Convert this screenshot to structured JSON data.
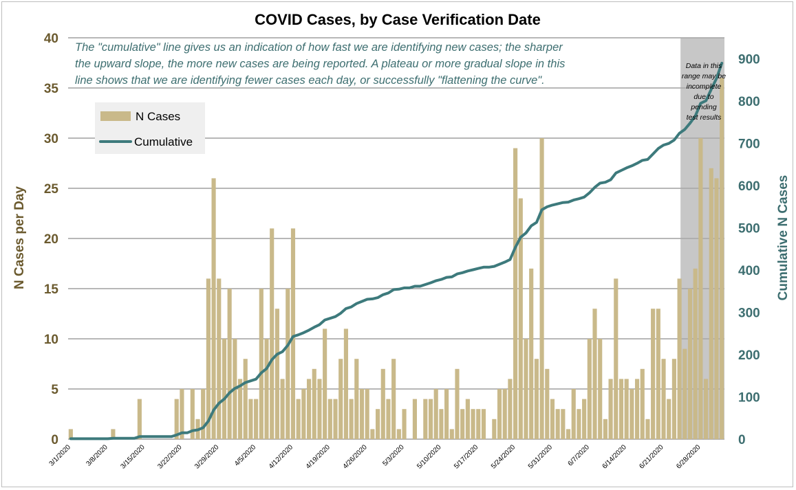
{
  "chart_data": {
    "type": "bar",
    "title": "COVID Cases, by Case Verification Date",
    "ylabel": "N Cases per Day",
    "y2label": "Cumulative N Cases",
    "xlabel": "",
    "ylim": [
      0,
      40
    ],
    "y2lim": [
      0,
      950
    ],
    "yticks": [
      "0",
      "5",
      "10",
      "15",
      "20",
      "25",
      "30",
      "35",
      "40"
    ],
    "y2ticks": [
      "0",
      "100",
      "200",
      "300",
      "400",
      "500",
      "600",
      "700",
      "800",
      "900"
    ],
    "grid": true,
    "legend_position": "top-left",
    "legend": [
      "N Cases",
      "Cumulative"
    ],
    "x_start_date": "3/1/2020",
    "x_tick_labels": [
      "3/1/2020",
      "3/8/2020",
      "3/15/2020",
      "3/22/2020",
      "3/29/2020",
      "4/5/2020",
      "4/12/2020",
      "4/19/2020",
      "4/26/2020",
      "5/3/2020",
      "5/10/2020",
      "5/17/2020",
      "5/24/2020",
      "5/31/2020",
      "6/7/2020",
      "6/14/2020",
      "6/21/2020",
      "6/28/2020"
    ],
    "annotation": [
      "The \"cumulative\" line gives  us an indication of how fast we are identifying new cases; the sharper",
      "the upward slope, the more new cases are being reported. A plateau or more gradual slope in this",
      "line shows that we are identifying fewer cases each day, or successfully \"flattening the curve\"."
    ],
    "shaded_region": {
      "from": "6/25/2020",
      "to": "7/3/2020",
      "label": [
        "Data in this",
        "range  may be",
        "incomplete",
        "due to",
        "pending",
        "test results"
      ]
    },
    "series": [
      {
        "name": "N Cases",
        "type": "bar",
        "color": "#c9b98a",
        "values": [
          1,
          0,
          0,
          0,
          0,
          0,
          0,
          0,
          1,
          0,
          0,
          0,
          0,
          4,
          0,
          0,
          0,
          0,
          0,
          0,
          4,
          5,
          0,
          5,
          2,
          5,
          16,
          26,
          16,
          10,
          15,
          10,
          6,
          8,
          4,
          4,
          15,
          10,
          21,
          13,
          6,
          15,
          21,
          4,
          5,
          6,
          7,
          6,
          11,
          4,
          4,
          8,
          11,
          4,
          8,
          5,
          5,
          1,
          3,
          7,
          4,
          8,
          1,
          3,
          0,
          4,
          0,
          4,
          4,
          5,
          3,
          5,
          1,
          7,
          3,
          4,
          3,
          3,
          3,
          0,
          2,
          5,
          5,
          6,
          29,
          24,
          10,
          17,
          8,
          30,
          7,
          4,
          3,
          3,
          1,
          5,
          3,
          4,
          10,
          13,
          10,
          2,
          6,
          16,
          6,
          6,
          5,
          6,
          7,
          2,
          13,
          13,
          8,
          4,
          8,
          16,
          9,
          15,
          17,
          30,
          6,
          27,
          26,
          36
        ]
      },
      {
        "name": "Cumulative",
        "type": "line",
        "color": "#3d7a7c",
        "axis": "right",
        "values": [
          1,
          1,
          1,
          1,
          1,
          1,
          1,
          1,
          2,
          2,
          2,
          2,
          2,
          6,
          6,
          6,
          6,
          6,
          6,
          6,
          10,
          15,
          15,
          20,
          22,
          27,
          43,
          69,
          85,
          95,
          110,
          120,
          126,
          134,
          138,
          142,
          157,
          167,
          188,
          201,
          207,
          222,
          243,
          247,
          252,
          258,
          265,
          271,
          282,
          286,
          290,
          298,
          309,
          313,
          321,
          326,
          331,
          332,
          335,
          342,
          346,
          354,
          355,
          358,
          358,
          362,
          362,
          366,
          370,
          375,
          378,
          383,
          384,
          391,
          394,
          398,
          401,
          404,
          407,
          407,
          409,
          414,
          419,
          425,
          454,
          478,
          488,
          505,
          513,
          543,
          550,
          554,
          557,
          560,
          561,
          566,
          569,
          573,
          583,
          596,
          606,
          608,
          614,
          630,
          636,
          642,
          647,
          653,
          660,
          662,
          675,
          688,
          696,
          700,
          708,
          724,
          733,
          748,
          765,
          795,
          801,
          828,
          854,
          890
        ]
      }
    ]
  }
}
